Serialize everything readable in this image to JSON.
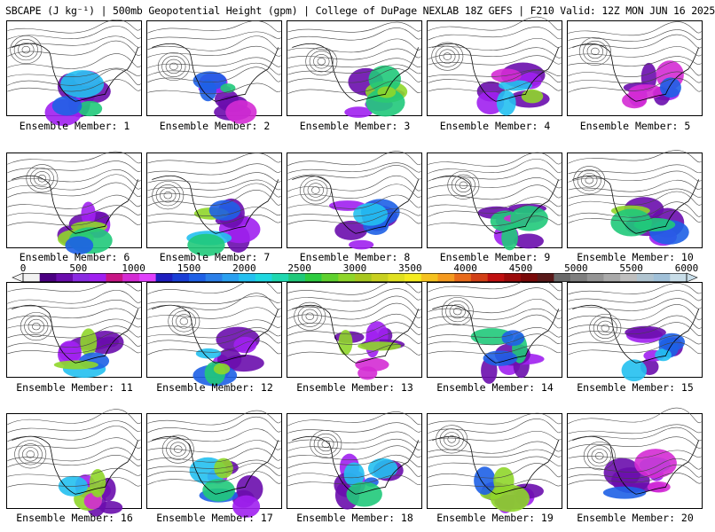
{
  "header": {
    "title": "SBCAPE (J kg⁻¹) | 500mb Geopotential Height (gpm) | College of DuPage NEXLAB 18Z GEFS | F210 Valid: 12Z MON JUN 16 2025"
  },
  "members": [
    {
      "label": "Ensemble Member: 1"
    },
    {
      "label": "Ensemble Member: 2"
    },
    {
      "label": "Ensemble Member: 3"
    },
    {
      "label": "Ensemble Member: 4"
    },
    {
      "label": "Ensemble Member: 5"
    },
    {
      "label": "Ensemble Member: 6"
    },
    {
      "label": "Ensemble Member: 7"
    },
    {
      "label": "Ensemble Member: 8"
    },
    {
      "label": "Ensemble Member: 9"
    },
    {
      "label": "Ensemble Member: 10"
    },
    {
      "label": "Ensemble Member: 11"
    },
    {
      "label": "Ensemble Member: 12"
    },
    {
      "label": "Ensemble Member: 13"
    },
    {
      "label": "Ensemble Member: 14"
    },
    {
      "label": "Ensemble Member: 15"
    },
    {
      "label": "Ensemble Member: 16"
    },
    {
      "label": "Ensemble Member: 17"
    },
    {
      "label": "Ensemble Member: 18"
    },
    {
      "label": "Ensemble Member: 19"
    },
    {
      "label": "Ensemble Member: 20"
    }
  ],
  "colorbar": {
    "ticks": [
      "0",
      "500",
      "1000",
      "1500",
      "2000",
      "2500",
      "3000",
      "3500",
      "4000",
      "4500",
      "5000",
      "5500",
      "6000"
    ],
    "colors": [
      "#f2f2f2",
      "#4b0082",
      "#6a0dad",
      "#8a2be2",
      "#a020f0",
      "#c71585",
      "#d42bd4",
      "#e040fb",
      "#1f1fbf",
      "#1a3fd6",
      "#1e60e6",
      "#2b7fe8",
      "#2aa0f0",
      "#24c0f0",
      "#1fd8e0",
      "#1fd8b0",
      "#20c97a",
      "#2ecc40",
      "#5fd12f",
      "#8fd62a",
      "#a8c81f",
      "#c8d020",
      "#e0e020",
      "#f5ec1f",
      "#f5c21f",
      "#f59a1f",
      "#e86a1a",
      "#d24016",
      "#c01010",
      "#9c0b0b",
      "#7a0a0a",
      "#5a1a1a",
      "#6a6a6a",
      "#7f7f7f",
      "#959595",
      "#aaaaaa",
      "#bfbfbf",
      "#b0c4d0",
      "#a0c0d8",
      "#c8dde8"
    ],
    "cape_colors": [
      "#6a0dad",
      "#a020f0",
      "#d42bd4",
      "#1e60e6",
      "#24c0f0",
      "#20c97a",
      "#8fd62a"
    ]
  }
}
